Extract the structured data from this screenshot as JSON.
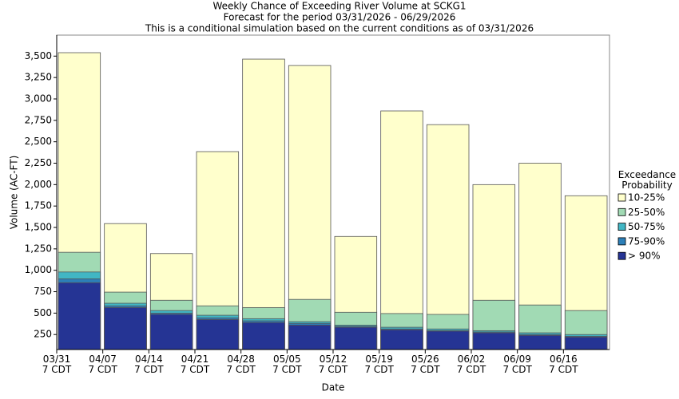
{
  "chart_data": {
    "type": "overlapping_bar",
    "title": "Weekly Chance of Exceeding River Volume at SCKG1",
    "subtitles": [
      "Forecast for the period 03/31/2026 - 06/29/2026",
      "This is a conditional simulation based on the current conditions as of 03/31/2026"
    ],
    "x_label": "Date",
    "y_label": "Volume (AC-FT)",
    "legend_title": "Exceedance\nProbability",
    "categories": [
      "03/31\n7 CDT",
      "04/07\n7 CDT",
      "04/14\n7 CDT",
      "04/21\n7 CDT",
      "04/28\n7 CDT",
      "05/05\n7 CDT",
      "05/12\n7 CDT",
      "05/19\n7 CDT",
      "05/26\n7 CDT",
      "06/02\n7 CDT",
      "06/09\n7 CDT",
      "06/16\n7 CDT"
    ],
    "series": [
      {
        "name": "10-25%",
        "color": "#ffffcc",
        "values": [
          3540,
          1545,
          1195,
          2385,
          3465,
          3390,
          1395,
          2860,
          2700,
          2000,
          2250,
          1870
        ]
      },
      {
        "name": "25-50%",
        "color": "#a1dab4",
        "values": [
          1210,
          745,
          650,
          585,
          565,
          660,
          510,
          495,
          485,
          650,
          595,
          530
        ]
      },
      {
        "name": "50-75%",
        "color": "#41b6c4",
        "values": [
          980,
          615,
          530,
          475,
          435,
          400,
          360,
          335,
          315,
          295,
          270,
          250
        ]
      },
      {
        "name": "75-90%",
        "color": "#2c7fb8",
        "values": [
          900,
          585,
          500,
          445,
          410,
          380,
          345,
          315,
          295,
          280,
          250,
          230
        ]
      },
      {
        "name": "> 90%",
        "color": "#253494",
        "values": [
          855,
          565,
          485,
          425,
          390,
          360,
          335,
          305,
          290,
          270,
          240,
          220
        ]
      }
    ],
    "ylim": [
      75,
      3745
    ],
    "yticks": [
      250,
      500,
      750,
      {
        "value": 1000,
        "label": "1,000"
      },
      {
        "value": 1250,
        "label": "1,250"
      },
      {
        "value": 1500,
        "label": "1,500"
      },
      {
        "value": 1750,
        "label": "1,750"
      },
      {
        "value": 2000,
        "label": "2,000"
      },
      {
        "value": 2250,
        "label": "2,250"
      },
      {
        "value": 2500,
        "label": "2,500"
      },
      {
        "value": 2750,
        "label": "2,750"
      },
      {
        "value": 3000,
        "label": "3,000"
      },
      {
        "value": 3250,
        "label": "3,250"
      },
      {
        "value": 3500,
        "label": "3,500"
      }
    ],
    "grid": false
  }
}
